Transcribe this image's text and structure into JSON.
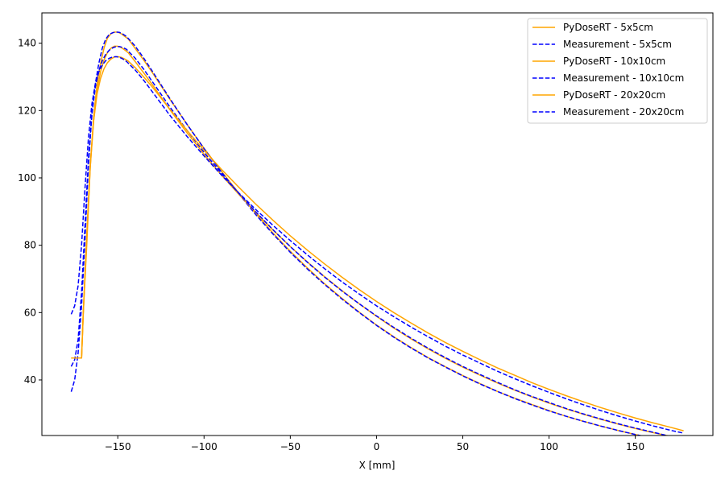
{
  "chart_data": {
    "type": "line",
    "title": "",
    "xlabel": "X [mm]",
    "ylabel": "",
    "xlim": [
      -194,
      195
    ],
    "ylim": [
      23.5,
      149
    ],
    "xticks": [
      -150,
      -100,
      -50,
      0,
      50,
      100,
      150
    ],
    "xtick_labels": [
      "−150",
      "−100",
      "−50",
      "0",
      "50",
      "100",
      "150"
    ],
    "yticks": [
      40,
      60,
      80,
      100,
      120,
      140
    ],
    "ytick_labels": [
      "40",
      "60",
      "80",
      "100",
      "120",
      "140"
    ],
    "grid": false,
    "legend_position": "top-right",
    "series": [
      {
        "name": "PyDoseRT - 5x5cm",
        "color": "#ffa500",
        "dash": "solid",
        "x": [
          -177,
          -171,
          -170,
          -168,
          -166,
          -164,
          -162,
          -160,
          -158,
          -156,
          -154,
          -152,
          -150,
          -148,
          -146,
          -144,
          -140,
          -135,
          -130,
          -120,
          -110,
          -100,
          -90,
          -80,
          -70,
          -60,
          -50,
          -40,
          -30,
          -20,
          -10,
          0,
          10,
          20,
          30,
          40,
          50,
          60,
          70,
          80,
          90,
          100,
          110,
          120,
          130,
          140,
          150,
          160,
          170,
          178
        ],
        "y": [
          46.5,
          46.5,
          60,
          80,
          103,
          118,
          128,
          134,
          138.5,
          141.5,
          142.8,
          143.3,
          143.3,
          142.8,
          142,
          141.3,
          138.5,
          135,
          131.3,
          123.5,
          116,
          108.8,
          102,
          95.6,
          89.4,
          83.6,
          78.2,
          73.2,
          68.5,
          64.2,
          60.1,
          56.3,
          52.8,
          49.6,
          46.6,
          43.9,
          41.3,
          38.9,
          36.6,
          34.6,
          32.7,
          30.9,
          29.2,
          27.7,
          26.3,
          25,
          23.8,
          22.7,
          21.6,
          20.8
        ]
      },
      {
        "name": "Measurement - 5x5cm",
        "color": "#0000ff",
        "dash": "dashed",
        "x": [
          -177,
          -175,
          -173,
          -171,
          -169,
          -167,
          -165,
          -163,
          -161,
          -159,
          -157,
          -155,
          -153,
          -151,
          -149,
          -147,
          -145,
          -140,
          -135,
          -130,
          -120,
          -110,
          -100,
          -90,
          -80,
          -70,
          -60,
          -50,
          -40,
          -30,
          -20,
          -10,
          0,
          10,
          20,
          30,
          40,
          50,
          60,
          70,
          80,
          90,
          100,
          110,
          120,
          130,
          140,
          150,
          160,
          170,
          178
        ],
        "y": [
          36.5,
          40,
          48,
          62,
          82,
          104,
          119,
          128,
          134,
          138.5,
          141.2,
          142.6,
          143.1,
          143.3,
          143.2,
          142.7,
          142,
          139.2,
          135.6,
          131.7,
          123.7,
          116,
          108.7,
          101.8,
          95.3,
          89.1,
          83.3,
          77.9,
          72.9,
          68.3,
          64,
          60,
          56.2,
          52.7,
          49.5,
          46.5,
          43.8,
          41.2,
          38.8,
          36.6,
          34.5,
          32.6,
          30.8,
          29.2,
          27.7,
          26.3,
          25,
          23.8,
          22.7,
          21.7,
          20.9
        ]
      },
      {
        "name": "PyDoseRT - 10x10cm",
        "color": "#ffa500",
        "dash": "solid",
        "x": [
          -177,
          -171,
          -170,
          -168,
          -166,
          -164,
          -162,
          -160,
          -158,
          -156,
          -154,
          -152,
          -150,
          -148,
          -146,
          -144,
          -140,
          -135,
          -130,
          -120,
          -110,
          -100,
          -90,
          -80,
          -70,
          -60,
          -50,
          -40,
          -30,
          -20,
          -10,
          0,
          10,
          20,
          30,
          40,
          50,
          60,
          70,
          80,
          90,
          100,
          110,
          120,
          130,
          140,
          150,
          160,
          170,
          178
        ],
        "y": [
          46.5,
          46.5,
          60,
          82,
          103,
          117,
          126,
          131.5,
          135,
          137.2,
          138.5,
          139.1,
          139.1,
          138.7,
          138,
          137.2,
          134.6,
          131.2,
          127.7,
          120.4,
          113.5,
          107,
          100.9,
          95.2,
          89.7,
          84.5,
          79.6,
          75,
          70.6,
          66.5,
          62.6,
          58.9,
          55.4,
          52.2,
          49.2,
          46.4,
          43.8,
          41.4,
          39.1,
          37,
          35,
          33.1,
          31.4,
          29.8,
          28.3,
          26.9,
          25.6,
          24.4,
          23.3,
          22.5
        ]
      },
      {
        "name": "Measurement - 10x10cm",
        "color": "#0000ff",
        "dash": "dashed",
        "x": [
          -177,
          -175,
          -173,
          -171,
          -169,
          -167,
          -165,
          -163,
          -161,
          -159,
          -157,
          -155,
          -153,
          -151,
          -149,
          -147,
          -145,
          -140,
          -135,
          -130,
          -120,
          -110,
          -100,
          -90,
          -80,
          -70,
          -60,
          -50,
          -40,
          -30,
          -20,
          -10,
          0,
          10,
          20,
          30,
          40,
          50,
          60,
          70,
          80,
          90,
          100,
          110,
          120,
          130,
          140,
          150,
          160,
          170,
          178
        ],
        "y": [
          44,
          46,
          52,
          66,
          86,
          106,
          119,
          127,
          131.8,
          134.8,
          136.7,
          137.9,
          138.6,
          139,
          139,
          138.7,
          138.2,
          135.6,
          132.3,
          128.6,
          121.2,
          114.2,
          107.6,
          101.4,
          95.5,
          89.9,
          84.6,
          79.6,
          74.9,
          70.5,
          66.4,
          62.6,
          59,
          55.6,
          52.4,
          49.4,
          46.6,
          44,
          41.6,
          39.3,
          37.1,
          35.1,
          33.3,
          31.5,
          29.9,
          28.4,
          27,
          25.7,
          24.5,
          23.3,
          22.5
        ]
      },
      {
        "name": "PyDoseRT - 20x20cm",
        "color": "#ffa500",
        "dash": "solid",
        "x": [
          -177,
          -171,
          -170,
          -168,
          -166,
          -164,
          -162,
          -160,
          -158,
          -156,
          -154,
          -152,
          -150,
          -148,
          -146,
          -144,
          -140,
          -135,
          -130,
          -120,
          -110,
          -100,
          -90,
          -80,
          -70,
          -60,
          -50,
          -40,
          -30,
          -20,
          -10,
          0,
          10,
          20,
          30,
          40,
          50,
          60,
          70,
          80,
          90,
          100,
          110,
          120,
          130,
          140,
          150,
          160,
          170,
          178
        ],
        "y": [
          46.5,
          46.5,
          60,
          83,
          104,
          117,
          125,
          129.5,
          132.4,
          134.2,
          135.3,
          135.9,
          136,
          135.8,
          135.3,
          134.7,
          132.8,
          130,
          127,
          120.5,
          114.2,
          108.2,
          102.6,
          97.3,
          92.2,
          87.4,
          82.8,
          78.5,
          74.4,
          70.5,
          66.8,
          63.3,
          60,
          56.9,
          53.9,
          51.1,
          48.5,
          46,
          43.6,
          41.4,
          39.2,
          37.2,
          35.3,
          33.5,
          31.8,
          30.2,
          28.7,
          27.3,
          26,
          24.9
        ]
      },
      {
        "name": "Measurement - 20x20cm",
        "color": "#0000ff",
        "dash": "dashed",
        "x": [
          -177,
          -175,
          -173,
          -171,
          -169,
          -167,
          -165,
          -163,
          -161,
          -159,
          -157,
          -155,
          -153,
          -151,
          -149,
          -147,
          -145,
          -140,
          -135,
          -130,
          -120,
          -110,
          -100,
          -90,
          -80,
          -70,
          -60,
          -50,
          -40,
          -30,
          -20,
          -10,
          0,
          10,
          20,
          30,
          40,
          50,
          60,
          70,
          80,
          90,
          100,
          110,
          120,
          130,
          140,
          150,
          160,
          170,
          178
        ],
        "y": [
          59.5,
          62,
          68,
          80,
          97,
          112,
          122,
          128,
          131.5,
          133.5,
          134.8,
          135.5,
          135.9,
          136,
          135.8,
          135.3,
          134.6,
          132.1,
          129,
          125.6,
          118.7,
          112.4,
          106.5,
          100.9,
          95.6,
          90.6,
          85.9,
          81.4,
          77.1,
          73,
          69.1,
          65.5,
          62,
          58.8,
          55.7,
          52.8,
          50,
          47.4,
          45,
          42.6,
          40.4,
          38.3,
          36.3,
          34.4,
          32.6,
          30.9,
          29.3,
          27.8,
          26.4,
          25.1,
          24.2
        ]
      }
    ]
  }
}
